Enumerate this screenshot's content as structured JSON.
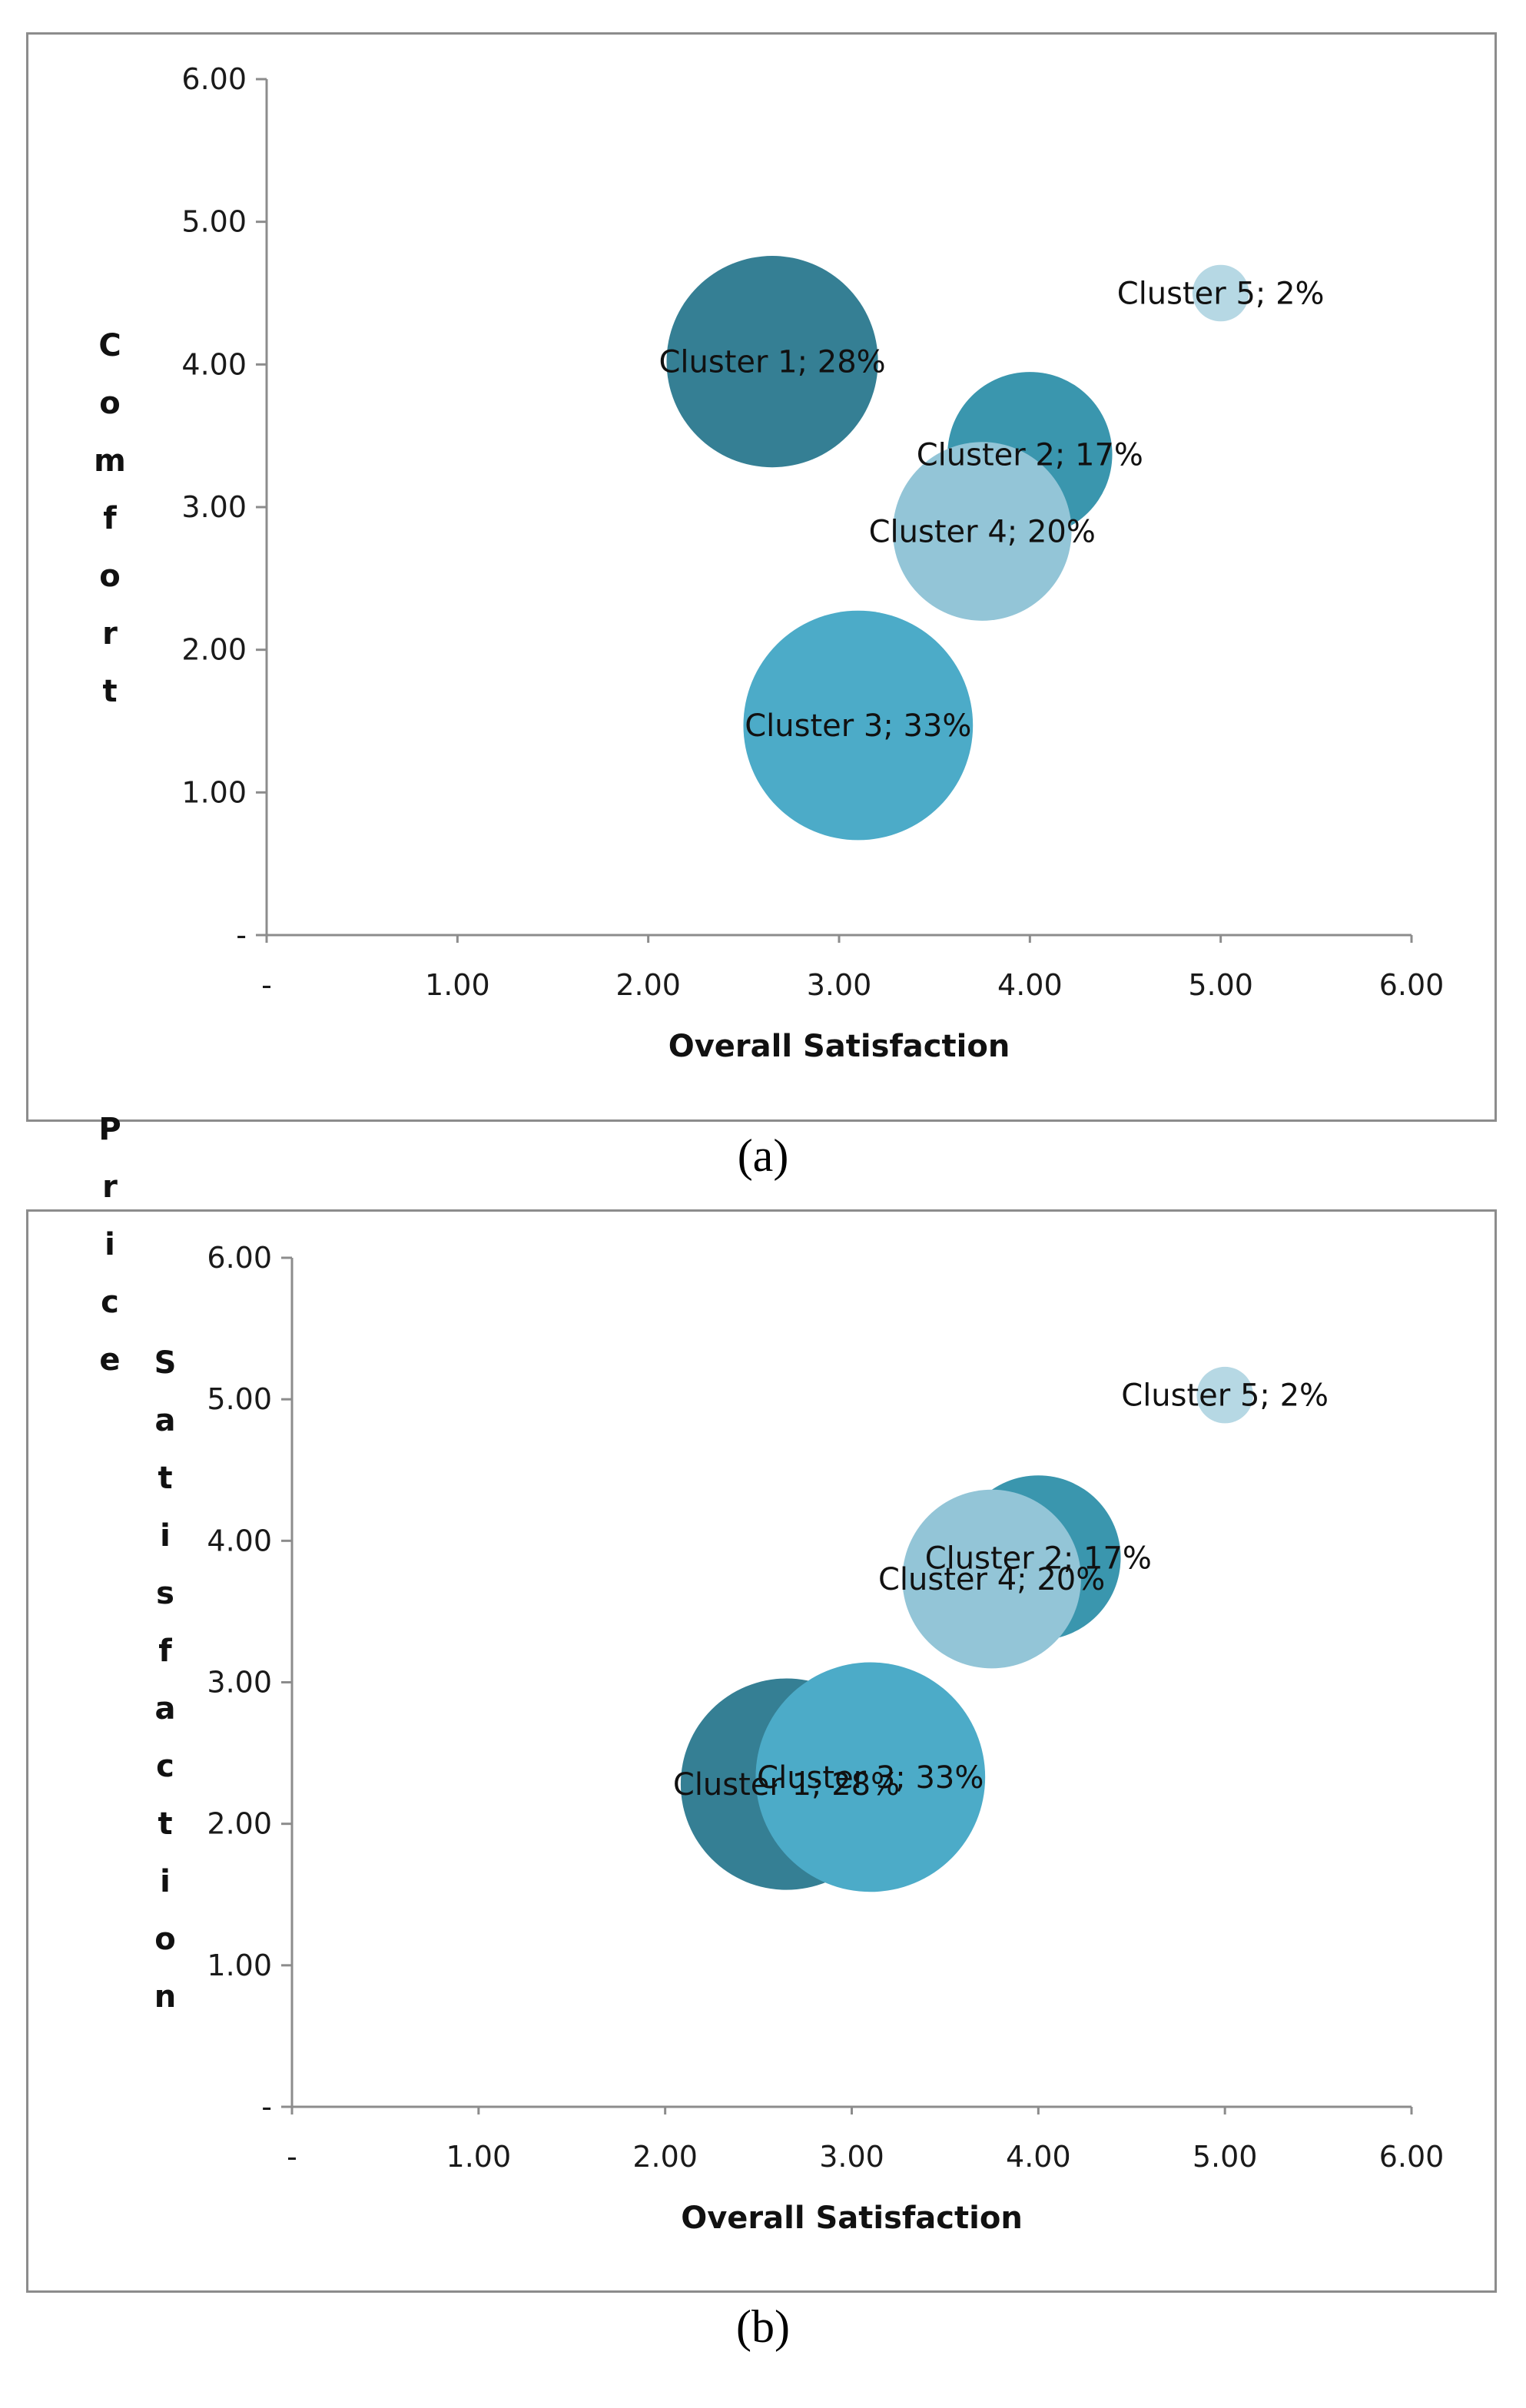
{
  "chart_data": [
    {
      "type": "bubble",
      "panel_label": "(a)",
      "xlabel": "Overall Satisfaction",
      "ylabel": "Comfort",
      "xlim": [
        0,
        6
      ],
      "ylim": [
        0,
        6
      ],
      "x_ticks": [
        "-",
        "1.00",
        "2.00",
        "3.00",
        "4.00",
        "5.00",
        "6.00"
      ],
      "y_ticks": [
        "-",
        "1.00",
        "2.00",
        "3.00",
        "4.00",
        "5.00",
        "6.00"
      ],
      "series": [
        {
          "name": "Cluster 1",
          "label": "Cluster 1; 28%",
          "x": 2.65,
          "y": 4.02,
          "share": 28,
          "color": "#357f94"
        },
        {
          "name": "Cluster 2",
          "label": "Cluster 2; 17%",
          "x": 4.0,
          "y": 3.37,
          "share": 17,
          "color": "#3a96ae"
        },
        {
          "name": "Cluster 3",
          "label": "Cluster 3; 33%",
          "x": 3.1,
          "y": 1.47,
          "share": 33,
          "color": "#4cabc8"
        },
        {
          "name": "Cluster 4",
          "label": "Cluster 4; 20%",
          "x": 3.75,
          "y": 2.83,
          "share": 20,
          "color": "#93c5d7"
        },
        {
          "name": "Cluster 5",
          "label": "Cluster 5; 2%",
          "x": 5.0,
          "y": 4.5,
          "share": 2,
          "color": "#b6d8e4"
        }
      ]
    },
    {
      "type": "bubble",
      "panel_label": "(b)",
      "xlabel": "Overall Satisfaction",
      "ylabel_left": "Price",
      "ylabel_right": "Satisfaction",
      "xlim": [
        0,
        6
      ],
      "ylim": [
        0,
        6
      ],
      "x_ticks": [
        "-",
        "1.00",
        "2.00",
        "3.00",
        "4.00",
        "5.00",
        "6.00"
      ],
      "y_ticks": [
        "-",
        "1.00",
        "2.00",
        "3.00",
        "4.00",
        "5.00",
        "6.00"
      ],
      "series": [
        {
          "name": "Cluster 1",
          "label": "Cluster 1; 28%",
          "x": 2.65,
          "y": 2.28,
          "share": 28,
          "color": "#357f94"
        },
        {
          "name": "Cluster 2",
          "label": "Cluster 2; 17%",
          "x": 4.0,
          "y": 3.88,
          "share": 17,
          "color": "#3a96ae"
        },
        {
          "name": "Cluster 3",
          "label": "Cluster 3; 33%",
          "x": 3.1,
          "y": 2.33,
          "share": 33,
          "color": "#4cabc8"
        },
        {
          "name": "Cluster 4",
          "label": "Cluster 4; 20%",
          "x": 3.75,
          "y": 3.73,
          "share": 20,
          "color": "#93c5d7"
        },
        {
          "name": "Cluster 5",
          "label": "Cluster 5; 2%",
          "x": 5.0,
          "y": 5.03,
          "share": 2,
          "color": "#b6d8e4"
        }
      ]
    }
  ]
}
